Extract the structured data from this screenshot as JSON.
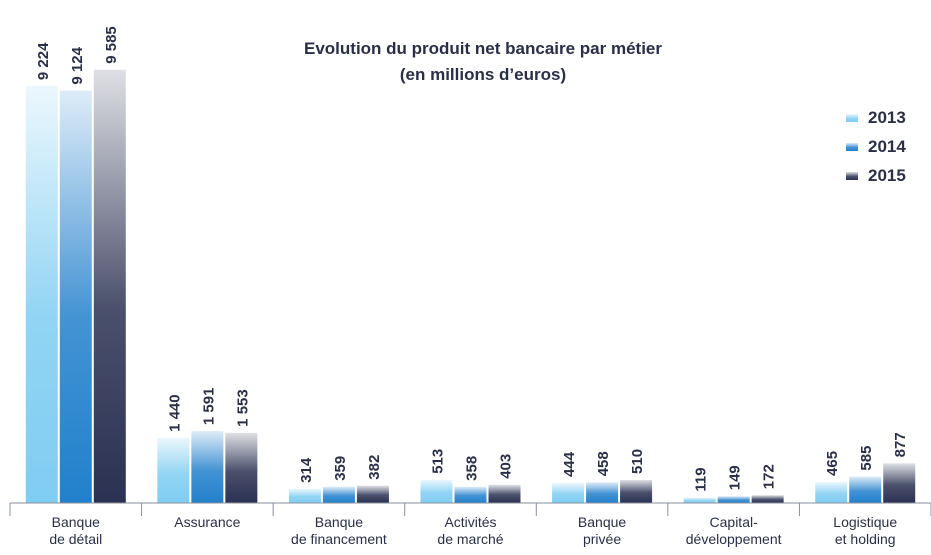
{
  "chart_data": {
    "type": "bar",
    "title": "Evolution du produit net bancaire par métier",
    "subtitle": "(en millions d’euros)",
    "categories": [
      "Banque\nde détail",
      "Assurance",
      "Banque\nde financement",
      "Activités\nde marché",
      "Banque\nprivée",
      "Capital-\ndéveloppement",
      "Logistique\net holding"
    ],
    "series": [
      {
        "name": "2013",
        "color": "#7fcdf2",
        "values": [
          9224,
          1440,
          314,
          513,
          444,
          119,
          465
        ],
        "value_labels": [
          "9 224",
          "1 440",
          "314",
          "513",
          "444",
          "119",
          "465"
        ]
      },
      {
        "name": "2014",
        "color": "#2280cc",
        "values": [
          9124,
          1591,
          359,
          358,
          458,
          149,
          585
        ],
        "value_labels": [
          "9 124",
          "1 591",
          "359",
          "358",
          "458",
          "149",
          "585"
        ]
      },
      {
        "name": "2015",
        "color": "#2b3152",
        "values": [
          9585,
          1553,
          382,
          403,
          510,
          172,
          877
        ],
        "value_labels": [
          "9 585",
          "1 553",
          "382",
          "403",
          "510",
          "172",
          "877"
        ]
      }
    ],
    "ylim": [
      0,
      10000
    ],
    "legend": "top-right"
  }
}
